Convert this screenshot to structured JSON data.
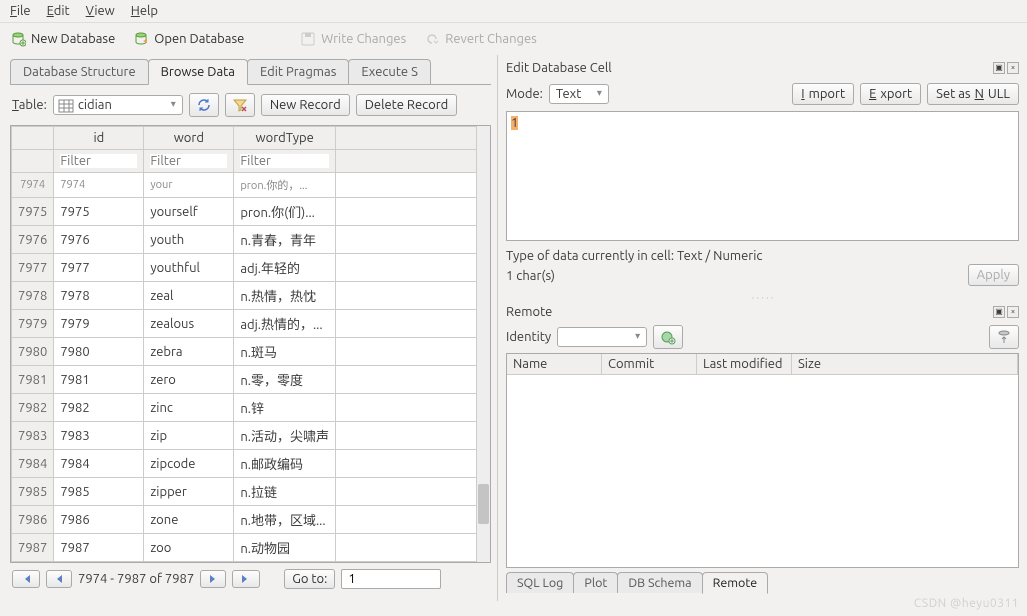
{
  "menu": {
    "file": "File",
    "edit": "Edit",
    "view": "View",
    "help": "Help"
  },
  "toolbar": {
    "new_db": "New Database",
    "open_db": "Open Database",
    "write_changes": "Write Changes",
    "revert_changes": "Revert Changes"
  },
  "tabs": {
    "structure": "Database Structure",
    "browse": "Browse Data",
    "pragmas": "Edit Pragmas",
    "execute": "Execute S"
  },
  "table_label": "Table:",
  "table_name": "cidian",
  "btn_new_record": "New Record",
  "btn_delete_record": "Delete Record",
  "columns": {
    "id": "id",
    "word": "word",
    "wordType": "wordType"
  },
  "filter_placeholder": "Filter",
  "rows": [
    {
      "n": "7974",
      "id": "7974",
      "word": "your",
      "wt": "pron.你的，..."
    },
    {
      "n": "7975",
      "id": "7975",
      "word": "yourself",
      "wt": "pron.你(们)..."
    },
    {
      "n": "7976",
      "id": "7976",
      "word": "youth",
      "wt": "n.青春，青年"
    },
    {
      "n": "7977",
      "id": "7977",
      "word": "youthful",
      "wt": "adj.年轻的"
    },
    {
      "n": "7978",
      "id": "7978",
      "word": "zeal",
      "wt": "n.热情，热忱"
    },
    {
      "n": "7979",
      "id": "7979",
      "word": "zealous",
      "wt": "adj.热情的，..."
    },
    {
      "n": "7980",
      "id": "7980",
      "word": "zebra",
      "wt": "n.斑马"
    },
    {
      "n": "7981",
      "id": "7981",
      "word": "zero",
      "wt": "n.零，零度"
    },
    {
      "n": "7982",
      "id": "7982",
      "word": "zinc",
      "wt": "n.锌"
    },
    {
      "n": "7983",
      "id": "7983",
      "word": "zip",
      "wt": "n.活动，尖啸声"
    },
    {
      "n": "7984",
      "id": "7984",
      "word": "zipcode",
      "wt": "n.邮政编码"
    },
    {
      "n": "7985",
      "id": "7985",
      "word": "zipper",
      "wt": "n.拉链"
    },
    {
      "n": "7986",
      "id": "7986",
      "word": "zone",
      "wt": "n.地带，区域..."
    },
    {
      "n": "7987",
      "id": "7987",
      "word": "zoo",
      "wt": "n.动物园"
    }
  ],
  "pager": {
    "range": "7974 - 7987 of 7987",
    "goto": "Go to:",
    "goto_value": "1"
  },
  "edit_panel": {
    "title": "Edit Database Cell",
    "mode_label": "Mode:",
    "mode_value": "Text",
    "import": "Import",
    "export": "Export",
    "set_null": "Set as NULL",
    "cell_value": "1",
    "type_info": "Type of data currently in cell: Text / Numeric",
    "char_count": "1 char(s)",
    "apply": "Apply"
  },
  "remote_panel": {
    "title": "Remote",
    "identity_label": "Identity",
    "cols": {
      "name": "Name",
      "commit": "Commit",
      "last_mod": "Last modified",
      "size": "Size"
    }
  },
  "bottom_tabs": {
    "sql_log": "SQL Log",
    "plot": "Plot",
    "db_schema": "DB Schema",
    "remote": "Remote"
  },
  "watermark": "CSDN @heyu0311",
  "colors": {
    "bg": "#f2f1f0",
    "border": "#aaaaaa",
    "highlight": "#f7b06a"
  }
}
